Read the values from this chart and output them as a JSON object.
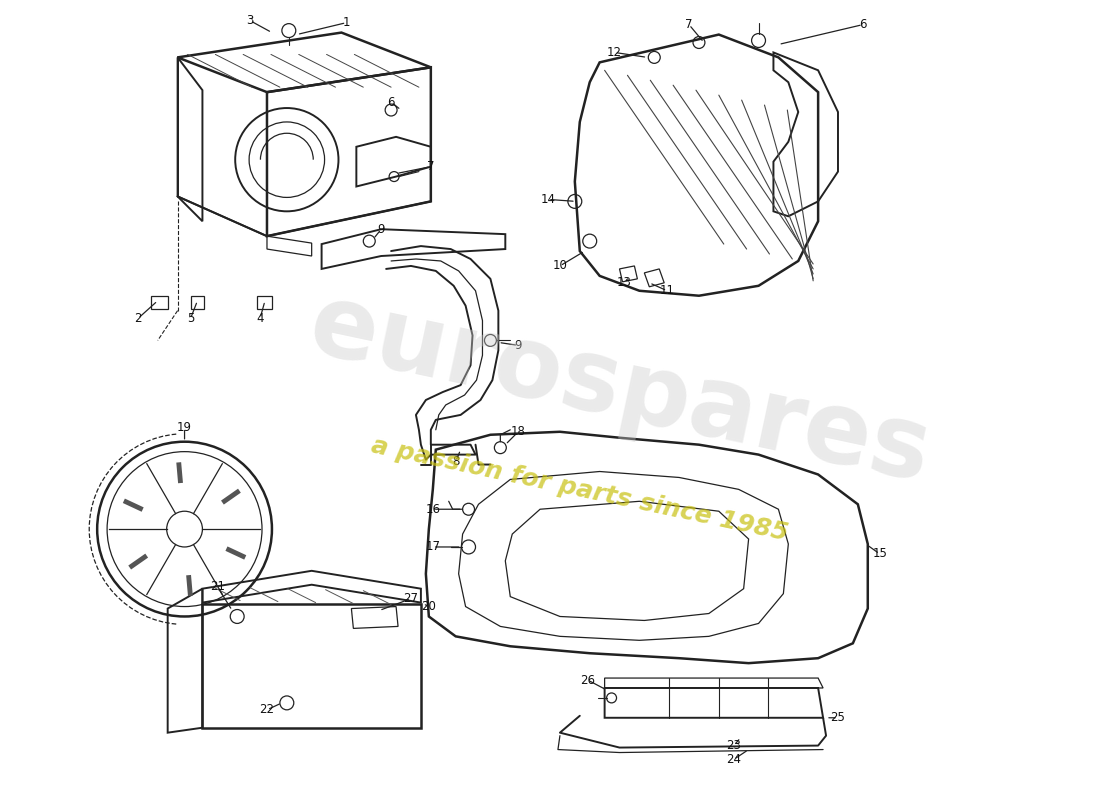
{
  "bg_color": "#ffffff",
  "line_color": "#222222",
  "label_color": "#111111",
  "figsize": [
    11.0,
    8.0
  ],
  "dpi": 100,
  "watermark_main": "eurospares",
  "watermark_sub": "a passion for parts since 1985",
  "wm_color": "#cccccc",
  "wm_yellow": "#d4d020"
}
